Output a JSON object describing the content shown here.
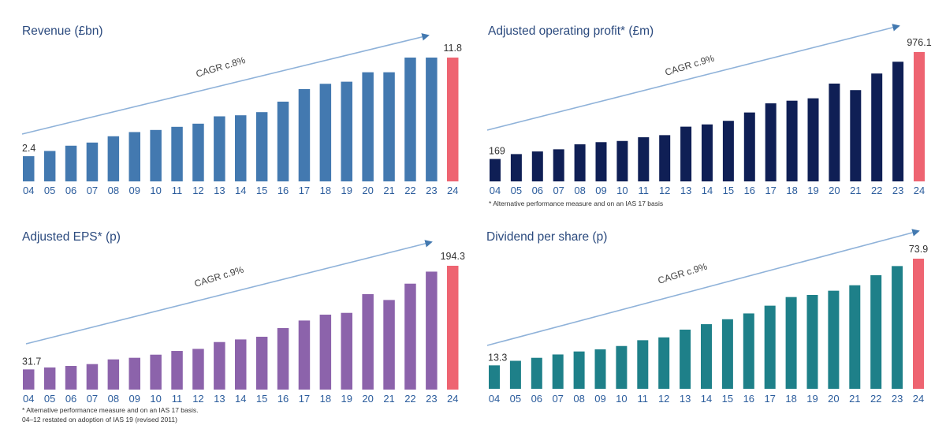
{
  "highlight_color": "#ee6471",
  "trend_color": "#8fb2d9",
  "chart_data": [
    {
      "id": "revenue",
      "type": "bar",
      "title": "Revenue (£bn)",
      "xlabel": "",
      "ylabel": "",
      "color": "#4379b0",
      "categories": [
        "04",
        "05",
        "06",
        "07",
        "08",
        "09",
        "10",
        "11",
        "12",
        "13",
        "14",
        "15",
        "16",
        "17",
        "18",
        "19",
        "20",
        "21",
        "22",
        "23",
        "24"
      ],
      "values": [
        2.4,
        2.9,
        3.4,
        3.7,
        4.3,
        4.7,
        4.9,
        5.2,
        5.5,
        6.2,
        6.3,
        6.6,
        7.6,
        8.8,
        9.3,
        9.5,
        10.4,
        10.4,
        11.8,
        11.8,
        11.8
      ],
      "labels": {
        "first": "2.4",
        "last": "11.8"
      },
      "annotation": "CAGR c.8%",
      "highlight_last": true,
      "ylim": [
        0,
        11.8
      ],
      "grid": false,
      "footnotes": []
    },
    {
      "id": "operating-profit",
      "type": "bar",
      "title": "Adjusted operating profit* (£m)",
      "xlabel": "",
      "ylabel": "",
      "color": "#0f1f55",
      "categories": [
        "04",
        "05",
        "06",
        "07",
        "08",
        "09",
        "10",
        "11",
        "12",
        "13",
        "14",
        "15",
        "16",
        "17",
        "18",
        "19",
        "20",
        "21",
        "22",
        "23",
        "24"
      ],
      "values": [
        169,
        206,
        226,
        242,
        280,
        296,
        305,
        333,
        349,
        413,
        430,
        457,
        520,
        589,
        609,
        627,
        738,
        689,
        814,
        903,
        976.1
      ],
      "labels": {
        "first": "169",
        "last": "976.1"
      },
      "annotation": "CAGR c.9%",
      "highlight_last": true,
      "ylim": [
        0,
        976.1
      ],
      "grid": false,
      "footnotes": [
        "* Alternative performance measure and on an IAS 17 basis"
      ]
    },
    {
      "id": "adjusted-eps",
      "type": "bar",
      "title": "Adjusted EPS* (p)",
      "xlabel": "",
      "ylabel": "",
      "color": "#8c63ab",
      "categories": [
        "04",
        "05",
        "06",
        "07",
        "08",
        "09",
        "10",
        "11",
        "12",
        "13",
        "14",
        "15",
        "16",
        "17",
        "18",
        "19",
        "20",
        "21",
        "22",
        "23",
        "24"
      ],
      "values": [
        31.7,
        34.7,
        37.1,
        40.0,
        47.4,
        49.9,
        54.8,
        60.6,
        63.9,
        74.6,
        78.7,
        82.9,
        96.5,
        108.4,
        117.6,
        120.4,
        149.8,
        140.6,
        166.2,
        185.1,
        194.3
      ],
      "labels": {
        "first": "31.7",
        "last": "194.3"
      },
      "annotation": "CAGR c.9%",
      "highlight_last": true,
      "ylim": [
        0,
        194.3
      ],
      "grid": false,
      "footnotes": [
        "* Alternative performance measure and on an IAS 17 basis.",
        "04–12 restated on adoption of IAS 19 (revised 2011)"
      ]
    },
    {
      "id": "dividend-per-share",
      "type": "bar",
      "title": "Dividend per share (p)",
      "xlabel": "",
      "ylabel": "",
      "color": "#1e8089",
      "categories": [
        "04",
        "05",
        "06",
        "07",
        "08",
        "09",
        "10",
        "11",
        "12",
        "13",
        "14",
        "15",
        "16",
        "17",
        "18",
        "19",
        "20",
        "21",
        "22",
        "23",
        "24"
      ],
      "values": [
        13.3,
        15.9,
        17.6,
        19.5,
        21.2,
        22.4,
        24.3,
        27.6,
        29.2,
        33.6,
        36.7,
        39.5,
        42.8,
        47.2,
        52.1,
        53.3,
        55.7,
        58.8,
        64.5,
        69.7,
        73.9
      ],
      "labels": {
        "first": "13.3",
        "last": "73.9"
      },
      "annotation": "CAGR c.9%",
      "highlight_last": true,
      "ylim": [
        0,
        73.9
      ],
      "grid": false,
      "footnotes": []
    }
  ]
}
